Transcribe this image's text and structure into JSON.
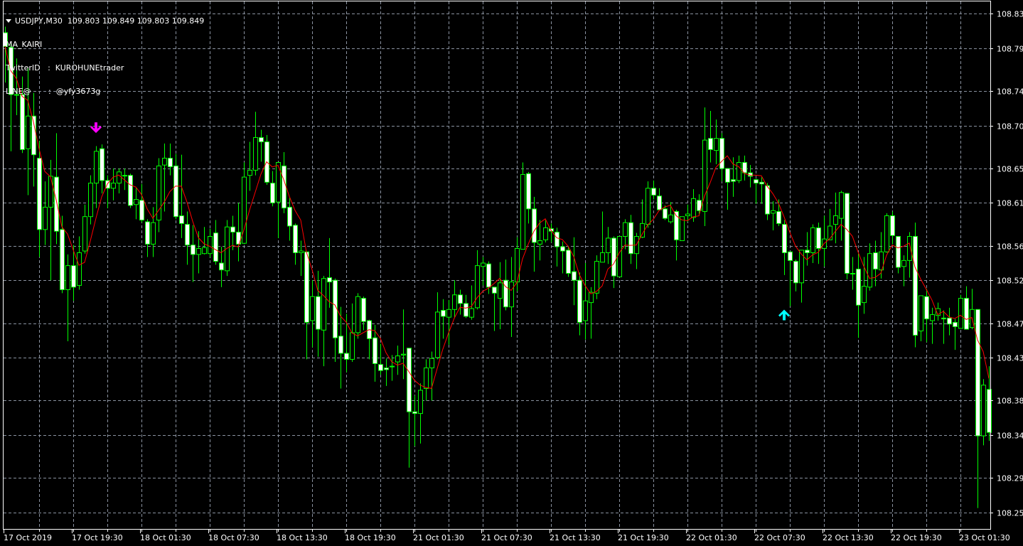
{
  "header": {
    "symbol_line": "USDJPY,M30  109.803 109.849 109.803 109.849",
    "indicator_name": "MA_KAIRI",
    "twitter_line": "TwitterID   :  KUROHUNEtrader",
    "line_line": "LINE@       :  @yfy3673g"
  },
  "colors": {
    "background": "#000000",
    "grid": "#8a92a0",
    "candle_wick": "#00ff00",
    "bear_body": "#ffffff",
    "bull_body": "#000000",
    "ma_line": "#ff0000",
    "sell_arrow": "#ff00ff",
    "buy_arrow": "#00ffff",
    "axis_text": "#ffffff"
  },
  "chart_data": {
    "type": "candlestick",
    "symbol": "USDJPY",
    "timeframe": "M30",
    "ylim": [
      108.234,
      108.846
    ],
    "grid": true,
    "y_ticks": [
      "108.83",
      "108.79",
      "108.74",
      "108.70",
      "108.65",
      "108.61",
      "108.56",
      "108.52",
      "108.47",
      "108.43",
      "108.38",
      "108.34",
      "108.29",
      "108.25"
    ],
    "x_ticks": [
      "17 Oct 2019",
      "17 Oct 19:30",
      "18 Oct 01:30",
      "18 Oct 07:30",
      "18 Oct 13:30",
      "18 Oct 19:30",
      "21 Oct 01:30",
      "21 Oct 07:30",
      "21 Oct 13:30",
      "21 Oct 19:30",
      "22 Oct 01:30",
      "22 Oct 07:30",
      "22 Oct 13:30",
      "22 Oct 19:30",
      "23 Oct 01:30"
    ],
    "ohlc_fields": [
      "open",
      "high",
      "low",
      "close"
    ],
    "candles": [
      [
        108.808,
        108.815,
        108.75,
        108.792
      ],
      [
        108.791,
        108.795,
        108.67,
        108.736
      ],
      [
        108.736,
        108.778,
        108.712,
        108.736
      ],
      [
        108.736,
        108.757,
        108.668,
        108.672
      ],
      [
        108.673,
        108.767,
        108.619,
        108.711
      ],
      [
        108.711,
        108.738,
        108.629,
        108.666
      ],
      [
        108.662,
        108.682,
        108.547,
        108.579
      ],
      [
        108.579,
        108.635,
        108.561,
        108.605
      ],
      [
        108.605,
        108.66,
        108.52,
        108.641
      ],
      [
        108.64,
        108.691,
        108.562,
        108.577
      ],
      [
        108.579,
        108.595,
        108.505,
        108.509
      ],
      [
        108.509,
        108.55,
        108.449,
        108.537
      ],
      [
        108.537,
        108.561,
        108.496,
        108.512
      ],
      [
        108.514,
        108.571,
        108.509,
        108.552
      ],
      [
        108.554,
        108.608,
        108.551,
        108.594
      ],
      [
        108.594,
        108.642,
        108.585,
        108.633
      ],
      [
        108.633,
        108.676,
        108.604,
        108.67
      ],
      [
        108.673,
        108.678,
        108.621,
        108.636
      ],
      [
        108.636,
        108.642,
        108.604,
        108.627
      ],
      [
        108.627,
        108.65,
        108.613,
        108.633
      ],
      [
        108.633,
        108.65,
        108.621,
        108.646
      ],
      [
        108.642,
        108.65,
        108.625,
        108.642
      ],
      [
        108.642,
        108.644,
        108.604,
        108.607
      ],
      [
        108.608,
        108.627,
        108.591,
        108.614
      ],
      [
        108.613,
        108.632,
        108.587,
        108.59
      ],
      [
        108.588,
        108.591,
        108.547,
        108.562
      ],
      [
        108.562,
        108.605,
        108.547,
        108.587
      ],
      [
        108.59,
        108.662,
        108.576,
        108.653
      ],
      [
        108.654,
        108.679,
        108.6,
        108.662
      ],
      [
        108.662,
        108.679,
        108.642,
        108.652
      ],
      [
        108.653,
        108.667,
        108.591,
        108.594
      ],
      [
        108.595,
        108.666,
        108.569,
        108.586
      ],
      [
        108.585,
        108.6,
        108.538,
        108.561
      ],
      [
        108.561,
        108.584,
        108.518,
        108.55
      ],
      [
        108.55,
        108.577,
        108.528,
        108.557
      ],
      [
        108.551,
        108.582,
        108.55,
        108.558
      ],
      [
        108.551,
        108.58,
        108.547,
        108.571
      ],
      [
        108.575,
        108.59,
        108.538,
        108.542
      ],
      [
        108.54,
        108.559,
        108.512,
        108.532
      ],
      [
        108.531,
        108.59,
        108.525,
        108.582
      ],
      [
        108.582,
        108.595,
        108.555,
        108.576
      ],
      [
        108.576,
        108.61,
        108.542,
        108.562
      ],
      [
        108.563,
        108.657,
        108.562,
        108.64
      ],
      [
        108.642,
        108.681,
        108.624,
        108.648
      ],
      [
        108.648,
        108.716,
        108.642,
        108.686
      ],
      [
        108.686,
        108.695,
        108.658,
        108.681
      ],
      [
        108.681,
        108.689,
        108.631,
        108.634
      ],
      [
        108.633,
        108.647,
        108.606,
        108.61
      ],
      [
        108.611,
        108.657,
        108.569,
        108.657
      ],
      [
        108.653,
        108.669,
        108.598,
        108.604
      ],
      [
        108.605,
        108.616,
        108.566,
        108.583
      ],
      [
        108.584,
        108.586,
        108.538,
        108.552
      ],
      [
        108.552,
        108.566,
        108.525,
        108.554
      ],
      [
        108.553,
        108.553,
        108.428,
        108.471
      ],
      [
        108.473,
        108.52,
        108.442,
        108.501
      ],
      [
        108.501,
        108.531,
        108.431,
        108.463
      ],
      [
        108.462,
        108.525,
        108.42,
        108.522
      ],
      [
        108.523,
        108.569,
        108.488,
        108.518
      ],
      [
        108.52,
        108.522,
        108.425,
        108.453
      ],
      [
        108.455,
        108.489,
        108.394,
        108.435
      ],
      [
        108.435,
        108.481,
        108.413,
        108.428
      ],
      [
        108.428,
        108.493,
        108.425,
        108.459
      ],
      [
        108.459,
        108.505,
        108.452,
        108.501
      ],
      [
        108.499,
        108.501,
        108.462,
        108.472
      ],
      [
        108.473,
        108.474,
        108.428,
        108.452
      ],
      [
        108.453,
        108.468,
        108.402,
        108.423
      ],
      [
        108.422,
        108.446,
        108.41,
        108.415
      ],
      [
        108.418,
        108.429,
        108.397,
        108.416
      ],
      [
        108.42,
        108.433,
        108.403,
        108.42
      ],
      [
        108.425,
        108.444,
        108.41,
        108.432
      ],
      [
        108.433,
        108.486,
        108.405,
        108.434
      ],
      [
        108.441,
        108.441,
        108.302,
        108.367
      ],
      [
        108.367,
        108.386,
        108.327,
        108.365
      ],
      [
        108.365,
        108.4,
        108.33,
        108.392
      ],
      [
        108.394,
        108.428,
        108.38,
        108.418
      ],
      [
        108.418,
        108.437,
        108.38,
        108.429
      ],
      [
        108.43,
        108.506,
        108.428,
        108.483
      ],
      [
        108.485,
        108.498,
        108.452,
        108.478
      ],
      [
        108.477,
        108.497,
        108.445,
        108.486
      ],
      [
        108.486,
        108.52,
        108.476,
        108.503
      ],
      [
        108.503,
        108.509,
        108.48,
        108.493
      ],
      [
        108.493,
        108.503,
        108.476,
        108.478
      ],
      [
        108.477,
        108.514,
        108.474,
        108.487
      ],
      [
        108.488,
        108.555,
        108.486,
        108.537
      ],
      [
        108.536,
        108.547,
        108.514,
        108.54
      ],
      [
        108.539,
        108.542,
        108.504,
        108.512
      ],
      [
        108.512,
        108.512,
        108.461,
        108.505
      ],
      [
        108.499,
        108.541,
        108.463,
        108.517
      ],
      [
        108.52,
        108.544,
        108.485,
        108.489
      ],
      [
        108.489,
        108.547,
        108.454,
        108.518
      ],
      [
        108.518,
        108.57,
        108.507,
        108.557
      ],
      [
        108.556,
        108.657,
        108.556,
        108.643
      ],
      [
        108.644,
        108.646,
        108.586,
        108.603
      ],
      [
        108.603,
        108.617,
        108.53,
        108.564
      ],
      [
        108.562,
        108.59,
        108.543,
        108.566
      ],
      [
        108.567,
        108.59,
        108.564,
        108.581
      ],
      [
        108.58,
        108.586,
        108.564,
        108.577
      ],
      [
        108.576,
        108.581,
        108.536,
        108.559
      ],
      [
        108.559,
        108.565,
        108.528,
        108.554
      ],
      [
        108.555,
        108.56,
        108.524,
        108.528
      ],
      [
        108.53,
        108.57,
        108.491,
        108.52
      ],
      [
        108.52,
        108.529,
        108.456,
        108.471
      ],
      [
        108.473,
        108.54,
        108.451,
        108.496
      ],
      [
        108.494,
        108.512,
        108.452,
        108.506
      ],
      [
        108.505,
        108.549,
        108.498,
        108.542
      ],
      [
        108.541,
        108.6,
        108.541,
        108.552
      ],
      [
        108.552,
        108.582,
        108.539,
        108.569
      ],
      [
        108.569,
        108.571,
        108.511,
        108.525
      ],
      [
        108.524,
        108.571,
        108.524,
        108.571
      ],
      [
        108.571,
        108.591,
        108.556,
        108.587
      ],
      [
        108.587,
        108.596,
        108.539,
        108.551
      ],
      [
        108.551,
        108.575,
        108.533,
        108.571
      ],
      [
        108.57,
        108.614,
        108.569,
        108.586
      ],
      [
        108.585,
        108.635,
        108.581,
        108.627
      ],
      [
        108.627,
        108.636,
        108.614,
        108.619
      ],
      [
        108.618,
        108.627,
        108.601,
        108.602
      ],
      [
        108.603,
        108.607,
        108.59,
        108.592
      ],
      [
        108.588,
        108.611,
        108.586,
        108.596
      ],
      [
        108.6,
        108.602,
        108.543,
        108.567
      ],
      [
        108.566,
        108.594,
        108.566,
        108.594
      ],
      [
        108.595,
        108.608,
        108.588,
        108.597
      ],
      [
        108.593,
        108.626,
        108.588,
        108.615
      ],
      [
        108.613,
        108.62,
        108.595,
        108.601
      ],
      [
        108.6,
        108.721,
        108.583,
        108.683
      ],
      [
        108.685,
        108.717,
        108.657,
        108.672
      ],
      [
        108.671,
        108.707,
        108.655,
        108.685
      ],
      [
        108.685,
        108.691,
        108.635,
        108.65
      ],
      [
        108.65,
        108.65,
        108.602,
        108.634
      ],
      [
        108.637,
        108.663,
        108.617,
        108.635
      ],
      [
        108.636,
        108.665,
        108.633,
        108.657
      ],
      [
        108.657,
        108.665,
        108.636,
        108.645
      ],
      [
        108.645,
        108.654,
        108.628,
        108.641
      ],
      [
        108.637,
        108.638,
        108.609,
        108.633
      ],
      [
        108.634,
        108.64,
        108.609,
        108.632
      ],
      [
        108.63,
        108.633,
        108.59,
        108.597
      ],
      [
        108.598,
        108.612,
        108.578,
        108.601
      ],
      [
        108.6,
        108.614,
        108.583,
        108.586
      ],
      [
        108.585,
        108.59,
        108.526,
        108.552
      ],
      [
        108.553,
        108.553,
        108.49,
        108.543
      ],
      [
        108.542,
        108.544,
        108.507,
        108.517
      ],
      [
        108.517,
        108.555,
        108.494,
        108.555
      ],
      [
        108.555,
        108.576,
        108.537,
        108.552
      ],
      [
        108.552,
        108.585,
        108.54,
        108.581
      ],
      [
        108.581,
        108.587,
        108.539,
        108.557
      ],
      [
        108.557,
        108.595,
        108.536,
        108.568
      ],
      [
        108.567,
        108.603,
        108.567,
        108.583
      ],
      [
        108.585,
        108.622,
        108.563,
        108.595
      ],
      [
        108.592,
        108.624,
        108.566,
        108.622
      ],
      [
        108.621,
        108.621,
        108.521,
        108.528
      ],
      [
        108.528,
        108.547,
        108.509,
        108.528
      ],
      [
        108.533,
        108.551,
        108.453,
        108.491
      ],
      [
        108.494,
        108.547,
        108.481,
        108.513
      ],
      [
        108.512,
        108.563,
        108.508,
        108.551
      ],
      [
        108.552,
        108.566,
        108.513,
        108.533
      ],
      [
        108.532,
        108.576,
        108.522,
        108.553
      ],
      [
        108.553,
        108.598,
        108.552,
        108.595
      ],
      [
        108.595,
        108.6,
        108.562,
        108.572
      ],
      [
        108.571,
        108.571,
        108.528,
        108.535
      ],
      [
        108.536,
        108.549,
        108.513,
        108.543
      ],
      [
        108.543,
        108.576,
        108.523,
        108.571
      ],
      [
        108.571,
        108.587,
        108.442,
        108.456
      ],
      [
        108.461,
        108.502,
        108.449,
        108.502
      ],
      [
        108.501,
        108.51,
        108.448,
        108.475
      ],
      [
        108.473,
        108.488,
        108.446,
        108.48
      ],
      [
        108.479,
        108.494,
        108.473,
        108.487
      ],
      [
        108.476,
        108.485,
        108.446,
        108.475
      ],
      [
        108.476,
        108.488,
        108.456,
        108.469
      ],
      [
        108.471,
        108.475,
        108.439,
        108.466
      ],
      [
        108.464,
        108.503,
        108.464,
        108.499
      ],
      [
        108.499,
        108.513,
        108.463,
        108.463
      ],
      [
        108.465,
        108.51,
        108.463,
        108.486
      ],
      [
        108.486,
        108.486,
        108.255,
        108.339
      ],
      [
        108.339,
        108.405,
        108.328,
        108.398
      ],
      [
        108.393,
        108.42,
        108.333,
        108.343
      ]
    ],
    "indicator": "MA_KAIRI",
    "signals": [
      {
        "type": "sell",
        "icon": "arrow-down-icon",
        "bar": 16,
        "price": 108.697
      },
      {
        "type": "buy",
        "icon": "arrow-up-icon",
        "bar": 137,
        "price": 108.48
      }
    ]
  }
}
